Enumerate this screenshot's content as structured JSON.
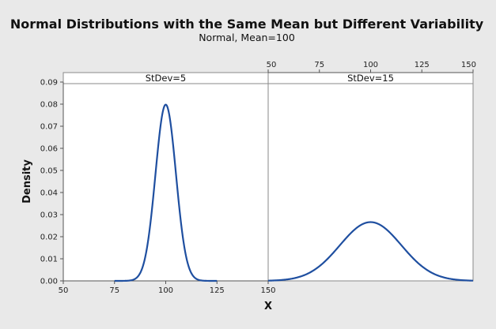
{
  "chart_data": {
    "type": "line",
    "title": "Normal Distributions with the Same Mean but Different Variability",
    "subtitle": "Normal, Mean=100",
    "xlabel": "X",
    "ylabel": "Density",
    "xlim": [
      50,
      150
    ],
    "ylim": [
      0,
      0.09
    ],
    "x_ticks": [
      "50",
      "75",
      "100",
      "125",
      "150"
    ],
    "y_ticks": [
      "0.00",
      "0.01",
      "0.02",
      "0.03",
      "0.04",
      "0.05",
      "0.06",
      "0.07",
      "0.08",
      "0.09"
    ],
    "panels": [
      {
        "label": "StDev=5",
        "distribution": "normal",
        "mean": 100,
        "stdev": 5,
        "x_range": [
          75,
          125
        ],
        "x_axis_position": "bottom",
        "peak_density": 0.0798
      },
      {
        "label": "StDev=15",
        "distribution": "normal",
        "mean": 100,
        "stdev": 15,
        "x_range": [
          50,
          150
        ],
        "x_axis_position": "top",
        "peak_density": 0.0266
      }
    ],
    "line_color": "#1f4fa0",
    "grid": false
  },
  "colors": {
    "outer_background": "#e9e9e9",
    "plot_background": "#ffffff",
    "strip_background": "#ffffff",
    "frame": "#8a8a8a",
    "line": "#1f4fa0"
  }
}
